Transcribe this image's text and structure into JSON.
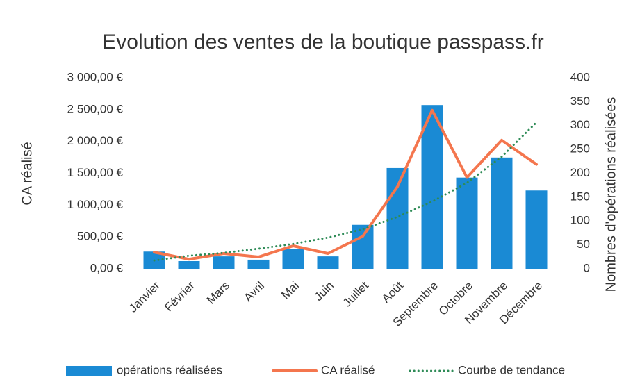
{
  "chart_data": {
    "type": "combo",
    "title": "Evolution des ventes de la boutique passpass.fr",
    "y_label": "CA réalisé",
    "y2_label": "Nombres d'opérations réalisées",
    "categories": [
      "Janvier",
      "Février",
      "Mars",
      "Avril",
      "Mai",
      "Juin",
      "Juillet",
      "Août",
      "Septembre",
      "Octobre",
      "Novembre",
      "Décembre"
    ],
    "series": [
      {
        "name": "opérations réalisées",
        "type": "bar",
        "axis": "y2",
        "color": "#1a8ad4",
        "values": [
          36,
          16,
          26,
          19,
          41,
          26,
          92,
          211,
          343,
          191,
          233,
          164
        ]
      },
      {
        "name": "CA réalisé",
        "type": "line",
        "axis": "y",
        "color": "#f4764e",
        "values": [
          260,
          150,
          240,
          185,
          360,
          240,
          510,
          1290,
          2490,
          1435,
          2020,
          1640
        ]
      },
      {
        "name": "Courbe de tendance",
        "type": "line",
        "axis": "y",
        "color": "#2e8b57",
        "dash": "dotted",
        "values": [
          130,
          205,
          250,
          315,
          390,
          490,
          620,
          815,
          1055,
          1350,
          1760,
          2300
        ]
      }
    ],
    "ylim": [
      0,
      3000
    ],
    "yticks": [
      {
        "value": 0,
        "label": "0,00 €"
      },
      {
        "value": 500,
        "label": "500,00 €"
      },
      {
        "value": 1000,
        "label": "1 000,00 €"
      },
      {
        "value": 1500,
        "label": "1 500,00 €"
      },
      {
        "value": 2000,
        "label": "2 000,00 €"
      },
      {
        "value": 2500,
        "label": "2 500,00 €"
      },
      {
        "value": 3000,
        "label": "3 000,00 €"
      }
    ],
    "y2lim": [
      0,
      400
    ],
    "y2ticks": [
      0,
      50,
      100,
      150,
      200,
      250,
      300,
      350,
      400
    ],
    "grid": false,
    "legend": "bottom"
  }
}
